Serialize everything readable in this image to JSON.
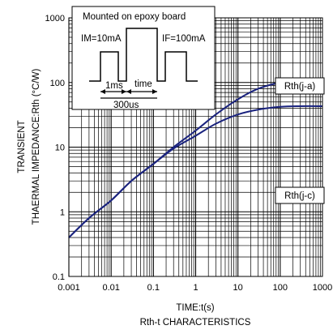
{
  "chart_data": {
    "type": "line",
    "x_scale": "log",
    "y_scale": "log",
    "xlim": [
      0.001,
      1000
    ],
    "ylim": [
      0.1,
      1000
    ],
    "x_ticks": [
      "0.001",
      "0.01",
      "0.1",
      "1",
      "10",
      "100",
      "1000"
    ],
    "y_ticks": [
      "0.1",
      "1",
      "10",
      "100",
      "1000"
    ],
    "xlabel": "TIME:t(s)",
    "ylabel_line1": "TRANSIENT",
    "ylabel_line2": "THAERMAL IMPEDANCE:Rth (°C/W)",
    "caption": "Rth-t CHARACTERISTICS",
    "grid": true,
    "series": [
      {
        "name": "Rth(j-a)",
        "x": [
          0.001,
          0.003,
          0.01,
          0.03,
          0.1,
          0.3,
          1,
          3,
          10,
          30,
          100,
          300,
          1000
        ],
        "y": [
          0.4,
          0.8,
          1.5,
          3.0,
          5.5,
          10,
          18,
          32,
          55,
          80,
          100,
          110,
          115
        ]
      },
      {
        "name": "Rth(j-c)",
        "x": [
          0.001,
          0.003,
          0.01,
          0.03,
          0.1,
          0.3,
          1,
          3,
          10,
          30,
          100,
          300,
          1000
        ],
        "y": [
          0.4,
          0.8,
          1.5,
          3.0,
          5.5,
          9.5,
          15,
          23,
          32,
          38,
          42,
          43,
          43
        ]
      }
    ],
    "inset": {
      "title": "Mounted on epoxy board",
      "im_label": "IM=10mA",
      "if_label": "IF=100mA",
      "dur1_label": "1ms",
      "dur2_label": "time",
      "period_label": "300us"
    },
    "colors": {
      "curve": "#1a237e",
      "grid": "#000000"
    }
  }
}
